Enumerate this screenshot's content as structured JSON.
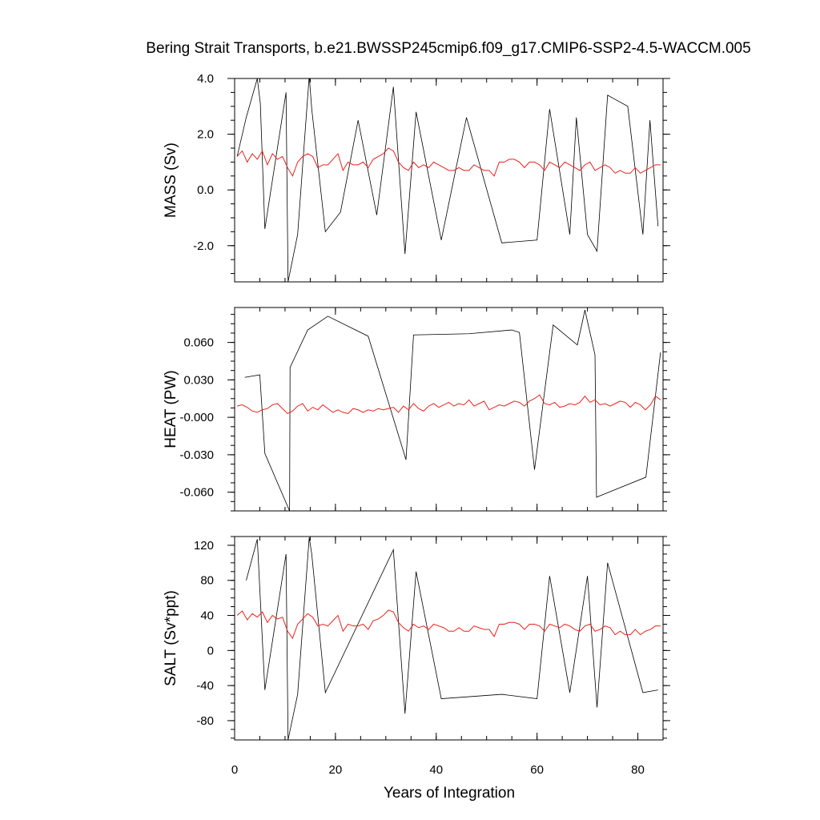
{
  "chart_data": {
    "type": "line",
    "title": "Bering Strait Transports, b.e21.BWSSP245cmip6.f09_g17.CMIP6-SSP2-4.5-WACCM.005",
    "xlabel": "Years of Integration",
    "xlim": [
      0,
      85
    ],
    "xticks": [
      0,
      20,
      40,
      60,
      80
    ],
    "xtick_labels": [
      "0",
      "20",
      "40",
      "60",
      "80"
    ],
    "colors": {
      "monthly": "#000000",
      "annual": "#e8231c"
    },
    "panels": [
      {
        "key": "mass",
        "ylabel": "MASS (Sv)",
        "ylim": [
          -3.3,
          4.0
        ],
        "yticks": [
          4.0,
          2.0,
          0.0,
          -2.0
        ],
        "ytick_labels": [
          "4.0",
          "2.0",
          "0.0",
          "-2.0"
        ],
        "series": [
          {
            "name": "monthly",
            "x": [
              0.5,
              2.3,
              4.5,
              5.1,
              6.0,
              10.2,
              10.6,
              12.5,
              14.8,
              15.3,
              18.0,
              21.0,
              24.5,
              28.2,
              31.5,
              33.8,
              36.0,
              41.0,
              46.0,
              53.0,
              60.0,
              62.5,
              66.5,
              67.8,
              70.0,
              71.9,
              74.0,
              78.0,
              81.0,
              82.4,
              84.0
            ],
            "y": [
              1.2,
              2.6,
              4.0,
              3.1,
              -1.4,
              3.5,
              -3.3,
              -1.6,
              4.1,
              2.9,
              -1.5,
              -0.8,
              2.5,
              -0.9,
              3.7,
              -2.3,
              2.8,
              -1.8,
              2.6,
              -1.9,
              -1.8,
              2.9,
              -1.6,
              2.6,
              -1.6,
              -2.2,
              3.4,
              3.0,
              -1.6,
              2.5,
              -1.3
            ]
          },
          {
            "name": "annual",
            "x": [
              0.5,
              1.5,
              2.5,
              3.5,
              4.5,
              5.5,
              6.5,
              7.5,
              8.5,
              9.5,
              10.5,
              11.5,
              12.5,
              13.5,
              14.5,
              15.5,
              16.5,
              17.5,
              18.5,
              19.5,
              20.5,
              21.5,
              22.5,
              23.5,
              24.5,
              25.5,
              26.5,
              27.5,
              28.5,
              29.5,
              30.5,
              31.5,
              32.5,
              33.5,
              34.5,
              35.5,
              36.5,
              37.5,
              38.5,
              39.5,
              40.5,
              41.5,
              42.5,
              43.5,
              44.5,
              45.5,
              46.5,
              47.5,
              48.5,
              49.5,
              50.5,
              51.5,
              52.5,
              53.5,
              54.5,
              55.5,
              56.5,
              57.5,
              58.5,
              59.5,
              60.5,
              61.5,
              62.5,
              63.5,
              64.5,
              65.5,
              66.5,
              67.5,
              68.5,
              69.5,
              70.5,
              71.5,
              72.5,
              73.5,
              74.5,
              75.5,
              76.5,
              77.5,
              78.5,
              79.5,
              80.5,
              81.5,
              82.5,
              83.5,
              84.5
            ],
            "y": [
              1.2,
              1.4,
              1.0,
              1.3,
              1.1,
              1.4,
              0.9,
              1.3,
              1.1,
              1.2,
              0.8,
              0.5,
              1.0,
              1.2,
              1.3,
              1.2,
              0.8,
              0.9,
              0.9,
              1.1,
              1.3,
              0.7,
              1.0,
              0.9,
              0.9,
              1.0,
              0.8,
              1.1,
              1.2,
              1.3,
              1.5,
              1.4,
              1.0,
              0.8,
              0.7,
              1.0,
              0.8,
              0.9,
              0.8,
              1.0,
              0.9,
              0.8,
              0.7,
              0.7,
              0.8,
              0.7,
              0.7,
              0.9,
              0.8,
              0.7,
              0.7,
              0.5,
              1.0,
              1.0,
              1.1,
              1.1,
              1.0,
              0.8,
              1.0,
              1.0,
              0.9,
              0.7,
              1.0,
              0.9,
              0.8,
              1.0,
              0.9,
              0.8,
              0.7,
              0.9,
              1.0,
              0.7,
              0.8,
              0.9,
              0.8,
              0.6,
              0.7,
              0.6,
              0.6,
              0.8,
              0.6,
              0.7,
              0.8,
              0.9,
              0.9
            ]
          }
        ]
      },
      {
        "key": "heat",
        "ylabel": "HEAT (PW)",
        "ylim": [
          -0.075,
          0.088
        ],
        "yticks": [
          0.06,
          0.03,
          0.0,
          -0.03,
          -0.06
        ],
        "ytick_labels": [
          "0.060",
          "0.030",
          "-0.000",
          "-0.030",
          "-0.060"
        ],
        "series": [
          {
            "name": "monthly",
            "x": [
              2.0,
              5.0,
              6.0,
              10.9,
              11.0,
              14.5,
              18.5,
              26.5,
              34.0,
              35.5,
              46.5,
              55.0,
              56.5,
              59.5,
              63.2,
              68.0,
              69.5,
              71.5,
              71.8,
              81.6,
              84.5
            ],
            "y": [
              0.032,
              0.034,
              -0.029,
              -0.075,
              0.04,
              0.07,
              0.081,
              0.065,
              -0.034,
              0.066,
              0.067,
              0.07,
              0.068,
              -0.042,
              0.074,
              0.058,
              0.086,
              0.05,
              -0.064,
              -0.048,
              0.052
            ]
          },
          {
            "name": "annual",
            "x": [
              0.5,
              1.5,
              2.5,
              3.5,
              4.5,
              5.5,
              6.5,
              7.5,
              8.5,
              9.5,
              10.5,
              11.5,
              12.5,
              13.5,
              14.5,
              15.5,
              16.5,
              17.5,
              18.5,
              19.5,
              20.5,
              21.5,
              22.5,
              23.5,
              24.5,
              25.5,
              26.5,
              27.5,
              28.5,
              29.5,
              30.5,
              31.5,
              32.5,
              33.5,
              34.5,
              35.5,
              36.5,
              37.5,
              38.5,
              39.5,
              40.5,
              41.5,
              42.5,
              43.5,
              44.5,
              45.5,
              46.5,
              47.5,
              48.5,
              49.5,
              50.5,
              51.5,
              52.5,
              53.5,
              54.5,
              55.5,
              56.5,
              57.5,
              58.5,
              59.5,
              60.5,
              61.5,
              62.5,
              63.5,
              64.5,
              65.5,
              66.5,
              67.5,
              68.5,
              69.5,
              70.5,
              71.5,
              72.5,
              73.5,
              74.5,
              75.5,
              76.5,
              77.5,
              78.5,
              79.5,
              80.5,
              81.5,
              82.5,
              83.5,
              84.5
            ],
            "y": [
              0.009,
              0.01,
              0.008,
              0.005,
              0.004,
              0.006,
              0.007,
              0.01,
              0.011,
              0.007,
              0.003,
              0.005,
              0.009,
              0.011,
              0.005,
              0.008,
              0.006,
              0.01,
              0.007,
              0.004,
              0.006,
              0.004,
              0.003,
              0.007,
              0.006,
              0.004,
              0.006,
              0.005,
              0.007,
              0.006,
              0.007,
              0.008,
              0.004,
              0.009,
              0.006,
              0.011,
              0.007,
              0.005,
              0.009,
              0.011,
              0.008,
              0.01,
              0.012,
              0.009,
              0.011,
              0.01,
              0.014,
              0.009,
              0.011,
              0.013,
              0.006,
              0.008,
              0.01,
              0.009,
              0.011,
              0.013,
              0.012,
              0.009,
              0.013,
              0.015,
              0.018,
              0.011,
              0.01,
              0.012,
              0.008,
              0.009,
              0.011,
              0.01,
              0.012,
              0.017,
              0.012,
              0.014,
              0.01,
              0.011,
              0.009,
              0.011,
              0.013,
              0.012,
              0.008,
              0.012,
              0.01,
              0.006,
              0.01,
              0.017,
              0.014
            ]
          }
        ]
      },
      {
        "key": "salt",
        "ylabel": "SALT (Sv*ppt)",
        "ylim": [
          -102,
          130
        ],
        "yticks": [
          120,
          80,
          40,
          0,
          -40,
          -80
        ],
        "ytick_labels": [
          "120",
          "80",
          "40",
          "0",
          "-40",
          "-80"
        ],
        "series": [
          {
            "name": "monthly",
            "x": [
              2.3,
              4.5,
              6.0,
              10.2,
              10.6,
              12.5,
              14.8,
              15.3,
              18.0,
              31.5,
              33.8,
              36.0,
              41.0,
              53.0,
              60.0,
              62.5,
              66.5,
              70.0,
              71.9,
              74.0,
              81.0,
              84.0
            ],
            "y": [
              80,
              127,
              -45,
              110,
              -102,
              -50,
              129,
              110,
              -48,
              115,
              -72,
              90,
              -55,
              -50,
              -55,
              85,
              -48,
              85,
              -65,
              100,
              -48,
              -45
            ]
          },
          {
            "name": "annual",
            "x": [
              0.5,
              1.5,
              2.5,
              3.5,
              4.5,
              5.5,
              6.5,
              7.5,
              8.5,
              9.5,
              10.5,
              11.5,
              12.5,
              13.5,
              14.5,
              15.5,
              16.5,
              17.5,
              18.5,
              19.5,
              20.5,
              21.5,
              22.5,
              23.5,
              24.5,
              25.5,
              26.5,
              27.5,
              28.5,
              29.5,
              30.5,
              31.5,
              32.5,
              33.5,
              34.5,
              35.5,
              36.5,
              37.5,
              38.5,
              39.5,
              40.5,
              41.5,
              42.5,
              43.5,
              44.5,
              45.5,
              46.5,
              47.5,
              48.5,
              49.5,
              50.5,
              51.5,
              52.5,
              53.5,
              54.5,
              55.5,
              56.5,
              57.5,
              58.5,
              59.5,
              60.5,
              61.5,
              62.5,
              63.5,
              64.5,
              65.5,
              66.5,
              67.5,
              68.5,
              69.5,
              70.5,
              71.5,
              72.5,
              73.5,
              74.5,
              75.5,
              76.5,
              77.5,
              78.5,
              79.5,
              80.5,
              81.5,
              82.5,
              83.5,
              84.5
            ],
            "y": [
              40,
              45,
              35,
              42,
              38,
              44,
              32,
              40,
              36,
              38,
              22,
              14,
              30,
              36,
              42,
              38,
              28,
              30,
              28,
              34,
              40,
              22,
              30,
              28,
              28,
              30,
              24,
              34,
              36,
              40,
              46,
              44,
              32,
              26,
              22,
              30,
              26,
              28,
              24,
              30,
              28,
              26,
              22,
              22,
              26,
              22,
              22,
              28,
              26,
              24,
              24,
              16,
              30,
              30,
              32,
              32,
              30,
              24,
              30,
              30,
              28,
              22,
              30,
              28,
              26,
              30,
              28,
              24,
              22,
              28,
              30,
              22,
              24,
              28,
              26,
              18,
              22,
              18,
              18,
              24,
              18,
              22,
              24,
              28,
              28
            ]
          }
        ]
      }
    ]
  }
}
